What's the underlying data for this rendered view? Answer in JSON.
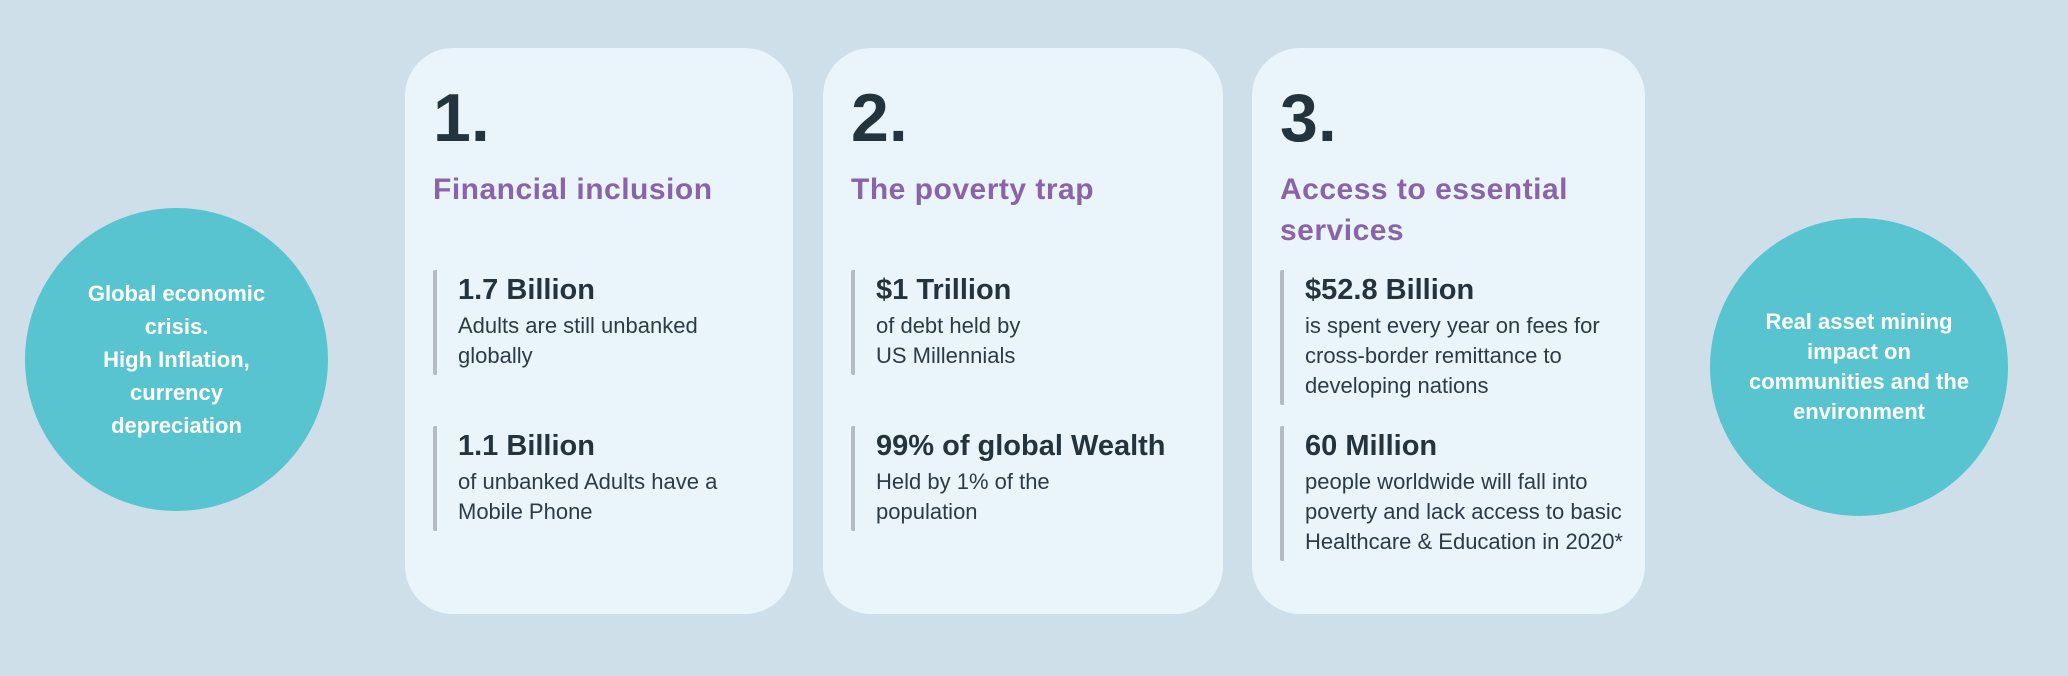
{
  "colors": {
    "background": "#cfdfea",
    "card_background": "#e9f4fb",
    "circle_teal": "#58c4cf",
    "heading_purple": "#8a63a8",
    "text_navy": "#24343f",
    "stat_bar_gray": "#b4bbc3",
    "circle_text_white": "#ffffff"
  },
  "left_circle": {
    "text": "Global economic\ncrisis.\nHigh Inflation,\ncurrency\ndepreciation"
  },
  "right_circle": {
    "text": "Real asset  mining\nimpact on\ncommunities and the\nenvironment"
  },
  "cards": [
    {
      "number": "1.",
      "title": "Financial inclusion",
      "stats": [
        {
          "value": "1.7 Billion",
          "description": "Adults are still unbanked\nglobally"
        },
        {
          "value": "1.1 Billion",
          "description": "of unbanked Adults have a\nMobile Phone"
        }
      ]
    },
    {
      "number": "2.",
      "title": "The poverty trap",
      "stats": [
        {
          "value": "$1 Trillion",
          "description": "of debt held by\nUS Millennials"
        },
        {
          "value": "99% of global Wealth",
          "description": "Held by 1% of the\npopulation"
        }
      ]
    },
    {
      "number": "3.",
      "title": "Access to essential services",
      "stats": [
        {
          "value": "$52.8 Billion",
          "description": "is spent every year on fees for\ncross-border remittance to\ndeveloping nations"
        },
        {
          "value": "60 Million",
          "description": "people worldwide will fall into\npoverty and lack access to basic\nHealthcare & Education in 2020*"
        }
      ]
    }
  ]
}
